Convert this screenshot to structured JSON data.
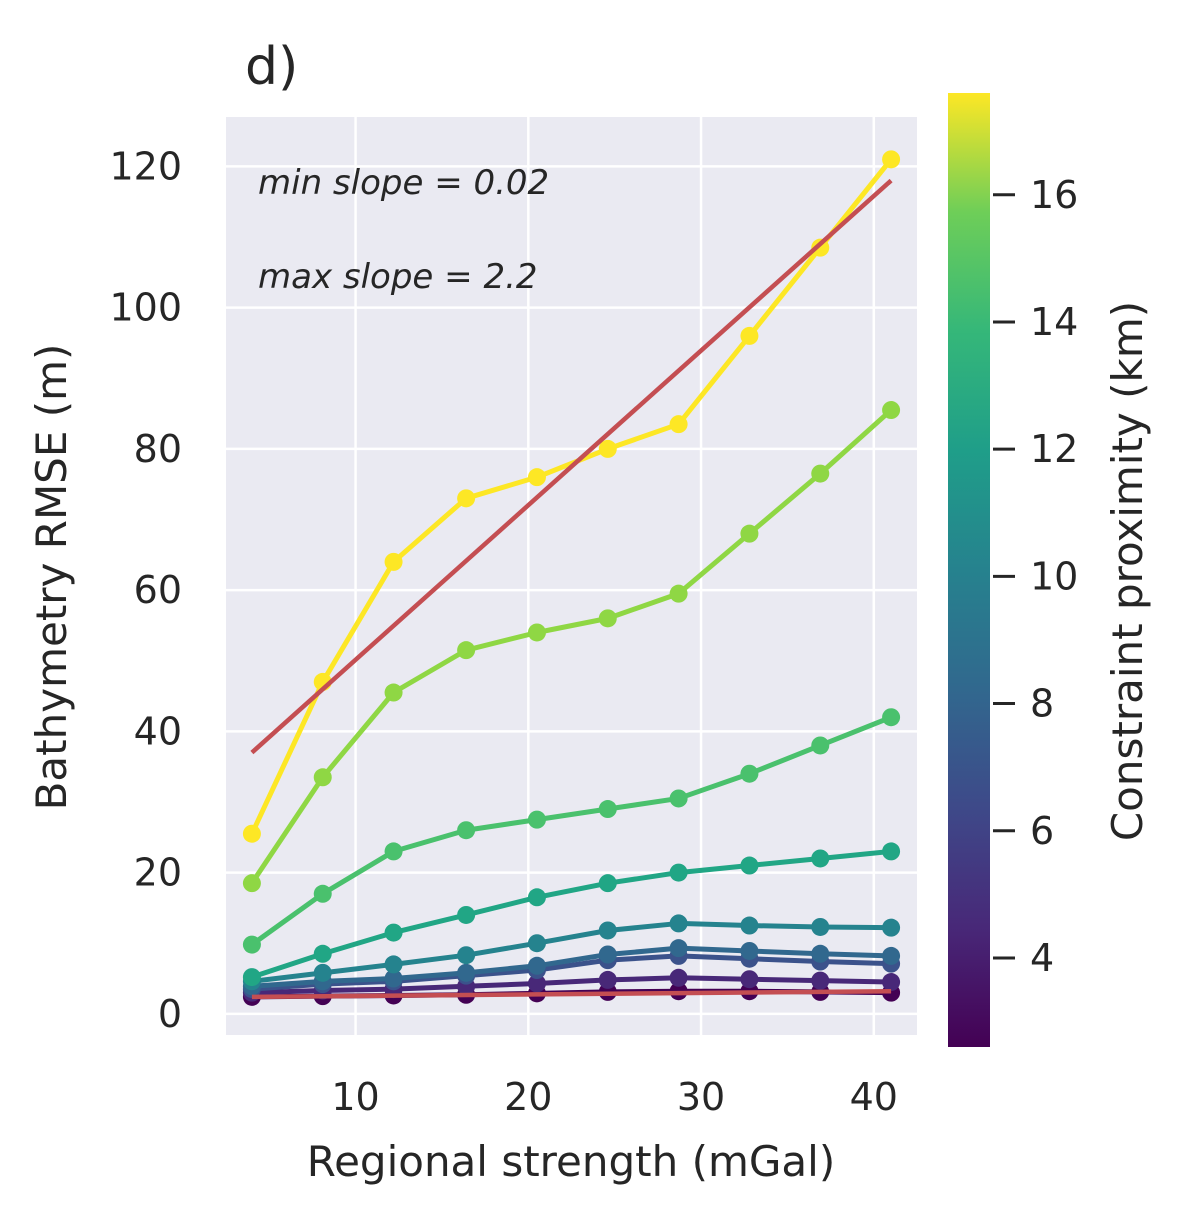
{
  "chart_data": {
    "type": "line",
    "title": "d)",
    "xlabel": "Regional strength (mGal)",
    "ylabel": "Bathymetry RMSE (m)",
    "xlim": [
      2.5,
      42.5
    ],
    "ylim": [
      -3,
      127
    ],
    "x_ticks": [
      "10",
      "20",
      "30",
      "40"
    ],
    "y_ticks": [
      "0",
      "20",
      "40",
      "60",
      "80",
      "100",
      "120"
    ],
    "grid": true,
    "annotations": {
      "min_slope": "min slope = 0.02",
      "max_slope": "max slope = 2.2"
    },
    "colorbar": {
      "label": "Constraint proximity (km)",
      "range": [
        2.6,
        17.6
      ],
      "ticks": [
        "4",
        "6",
        "8",
        "10",
        "12",
        "14",
        "16"
      ],
      "colormap": "viridis"
    },
    "x": [
      4.0,
      8.1,
      12.2,
      16.4,
      20.5,
      24.6,
      28.7,
      32.8,
      36.9,
      41.0
    ],
    "series": [
      {
        "proximity": 17.6,
        "color": "#fde725",
        "values": [
          25.5,
          47,
          64,
          73,
          76,
          80,
          83.5,
          96,
          108.5,
          121
        ]
      },
      {
        "proximity": 15.5,
        "color": "#8fd744",
        "values": [
          18.5,
          33.5,
          45.5,
          51.5,
          54,
          56,
          59.5,
          68,
          76.5,
          85.5
        ]
      },
      {
        "proximity": 13.5,
        "color": "#4ac16d",
        "values": [
          9.8,
          17,
          23,
          26,
          27.5,
          29,
          30.5,
          34,
          38,
          42
        ]
      },
      {
        "proximity": 11.5,
        "color": "#21a685",
        "values": [
          5.2,
          8.5,
          11.5,
          14,
          16.5,
          18.5,
          20,
          21,
          22,
          23
        ]
      },
      {
        "proximity": 9.5,
        "color": "#25838e",
        "values": [
          4.6,
          5.8,
          7.0,
          8.3,
          10,
          11.8,
          12.8,
          12.5,
          12.3,
          12.2
        ]
      },
      {
        "proximity": 8.0,
        "color": "#31688e",
        "values": [
          3.9,
          4.6,
          5.0,
          5.8,
          6.8,
          8.4,
          9.3,
          8.9,
          8.5,
          8.2
        ]
      },
      {
        "proximity": 6.5,
        "color": "#3b528b",
        "values": [
          3.5,
          4.2,
          4.6,
          5.4,
          6.2,
          7.6,
          8.2,
          7.8,
          7.4,
          7.1
        ]
      },
      {
        "proximity": 5.0,
        "color": "#482878",
        "values": [
          3.0,
          3.3,
          3.5,
          3.9,
          4.3,
          4.8,
          5.1,
          4.9,
          4.7,
          4.5
        ]
      },
      {
        "proximity": 3.5,
        "color": "#440154",
        "values": [
          2.4,
          2.5,
          2.6,
          2.7,
          2.9,
          3.1,
          3.2,
          3.2,
          3.1,
          3.0
        ]
      }
    ],
    "trend_lines": [
      {
        "color": "#c44e52",
        "x": [
          4.0,
          41.0
        ],
        "values": [
          37,
          118
        ]
      },
      {
        "color": "#c44e52",
        "x": [
          4.0,
          41.0
        ],
        "values": [
          2.4,
          3.2
        ]
      }
    ]
  }
}
